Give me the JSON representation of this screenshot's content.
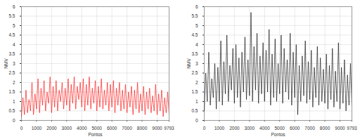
{
  "chart_data": [
    {
      "type": "line",
      "xlabel": "Pontos",
      "ylabel": "NMV",
      "color": "#ff0000",
      "grid": true,
      "xlim": [
        0,
        9793
      ],
      "xticks": [
        0,
        1000,
        2000,
        3000,
        4000,
        5000,
        6000,
        7000,
        8000,
        9000,
        9793
      ],
      "ylim": [
        0,
        6
      ],
      "yticks": [
        0,
        0.5,
        1,
        1.5,
        2,
        2.5,
        3,
        3.5,
        4,
        4.5,
        5,
        5.5,
        6
      ],
      "x": [
        0,
        100,
        200,
        300,
        400,
        500,
        600,
        700,
        800,
        900,
        1000,
        1100,
        1200,
        1300,
        1400,
        1500,
        1600,
        1700,
        1800,
        1900,
        2000,
        2100,
        2200,
        2300,
        2400,
        2500,
        2600,
        2700,
        2800,
        2900,
        3000,
        3100,
        3200,
        3300,
        3400,
        3500,
        3600,
        3700,
        3800,
        3900,
        4000,
        4100,
        4200,
        4300,
        4400,
        4500,
        4600,
        4700,
        4800,
        4900,
        5000,
        5100,
        5200,
        5300,
        5400,
        5500,
        5600,
        5700,
        5800,
        5900,
        6000,
        6100,
        6200,
        6300,
        6400,
        6500,
        6600,
        6700,
        6800,
        6900,
        7000,
        7100,
        7200,
        7300,
        7400,
        7500,
        7600,
        7700,
        7800,
        7900,
        8000,
        8100,
        8200,
        8300,
        8400,
        8500,
        8600,
        8700,
        8800,
        8900,
        9000,
        9100,
        9200,
        9300,
        9400,
        9500,
        9600,
        9700,
        9793
      ],
      "values": [
        0.2,
        1.2,
        0.3,
        1.6,
        0.4,
        1.1,
        0.5,
        2.0,
        0.3,
        1.4,
        0.6,
        2.2,
        0.4,
        1.7,
        0.8,
        2.1,
        0.5,
        1.5,
        0.9,
        2.3,
        0.4,
        1.8,
        0.7,
        2.1,
        0.5,
        1.6,
        1.0,
        2.0,
        0.6,
        1.7,
        0.8,
        2.2,
        0.5,
        1.9,
        0.9,
        2.3,
        0.6,
        1.8,
        1.1,
        2.0,
        0.7,
        2.2,
        0.5,
        1.9,
        0.8,
        2.3,
        0.6,
        1.7,
        0.9,
        2.1,
        0.5,
        1.8,
        0.7,
        2.2,
        0.6,
        1.6,
        0.8,
        2.0,
        0.5,
        1.9,
        0.7,
        2.1,
        0.4,
        1.7,
        0.8,
        2.0,
        0.5,
        1.6,
        0.6,
        1.9,
        0.4,
        1.5,
        0.7,
        1.8,
        0.3,
        1.6,
        0.6,
        2.0,
        0.4,
        1.4,
        0.5,
        1.8,
        0.3,
        1.5,
        0.6,
        1.7,
        0.4,
        1.3,
        0.5,
        1.9,
        0.3,
        1.4,
        0.5,
        1.6,
        0.2,
        1.2,
        0.4,
        1.5,
        0.3
      ]
    },
    {
      "type": "line",
      "xlabel": "Pontos",
      "ylabel": "NMV",
      "color": "#000000",
      "grid": true,
      "xlim": [
        0,
        9793
      ],
      "xticks": [
        0,
        1000,
        2000,
        3000,
        4000,
        5000,
        6000,
        7000,
        8000,
        9000,
        9793
      ],
      "ylim": [
        0,
        6
      ],
      "yticks": [
        0,
        0.5,
        1,
        1.5,
        2,
        2.5,
        3,
        3.5,
        4,
        4.5,
        5,
        5.5,
        6
      ],
      "x": [
        0,
        100,
        200,
        300,
        400,
        500,
        600,
        700,
        800,
        900,
        1000,
        1100,
        1200,
        1300,
        1400,
        1500,
        1600,
        1700,
        1800,
        1900,
        2000,
        2100,
        2200,
        2300,
        2400,
        2500,
        2600,
        2700,
        2800,
        2900,
        3000,
        3100,
        3200,
        3300,
        3400,
        3500,
        3600,
        3700,
        3800,
        3900,
        4000,
        4100,
        4200,
        4300,
        4400,
        4500,
        4600,
        4700,
        4800,
        4900,
        5000,
        5100,
        5200,
        5300,
        5400,
        5500,
        5600,
        5700,
        5800,
        5900,
        6000,
        6100,
        6200,
        6300,
        6400,
        6500,
        6600,
        6700,
        6800,
        6900,
        7000,
        7100,
        7200,
        7300,
        7400,
        7500,
        7600,
        7700,
        7800,
        7900,
        8000,
        8100,
        8200,
        8300,
        8400,
        8500,
        8600,
        8700,
        8800,
        8900,
        9000,
        9100,
        9200,
        9300,
        9400,
        9500,
        9600,
        9700,
        9793
      ],
      "values": [
        0.5,
        2.5,
        1.0,
        3.6,
        0.8,
        2.2,
        1.2,
        3.0,
        0.6,
        2.8,
        1.0,
        4.2,
        0.8,
        3.1,
        1.4,
        4.5,
        1.0,
        2.9,
        1.6,
        3.8,
        0.9,
        4.0,
        1.2,
        3.3,
        0.7,
        3.6,
        1.5,
        4.4,
        1.1,
        3.2,
        1.3,
        5.7,
        1.0,
        3.9,
        1.6,
        4.6,
        0.9,
        3.4,
        1.4,
        4.1,
        1.0,
        3.7,
        1.5,
        4.8,
        0.8,
        3.5,
        1.2,
        4.3,
        1.0,
        3.0,
        1.4,
        4.5,
        0.9,
        3.8,
        1.5,
        3.2,
        1.1,
        4.6,
        0.8,
        3.6,
        1.2,
        4.0,
        0.3,
        2.9,
        1.0,
        3.4,
        1.3,
        4.2,
        0.9,
        3.1,
        1.1,
        3.7,
        0.7,
        2.8,
        1.2,
        3.9,
        0.8,
        3.3,
        1.0,
        2.7,
        0.9,
        3.5,
        0.6,
        2.9,
        1.1,
        3.8,
        0.7,
        2.6,
        1.0,
        4.1,
        0.6,
        2.8,
        0.9,
        3.2,
        0.5,
        2.4,
        0.8,
        3.0,
        0.7
      ]
    }
  ]
}
